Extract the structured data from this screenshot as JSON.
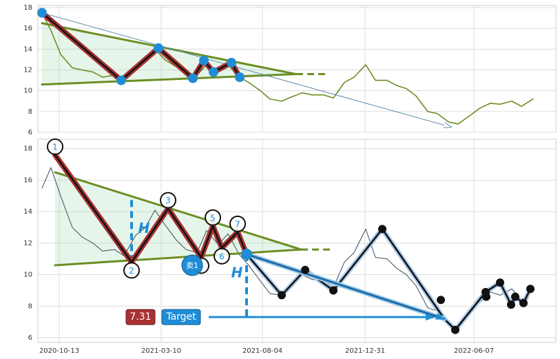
{
  "chart_data": [
    {
      "type": "line",
      "color": "#6b8e23",
      "ylim": [
        6,
        18.2
      ],
      "yticks": [
        6,
        8,
        10,
        12,
        14,
        16,
        18
      ],
      "xlim": [
        "2020-09-12",
        "2022-10-04"
      ],
      "xticks": [
        "2020-10-13",
        "2021-03-10",
        "2021-08-04",
        "2021-12-31",
        "2022-06-07"
      ],
      "show_xtick_labels": false,
      "grid": true,
      "x": [
        "2020-09-18",
        "2020-10-01",
        "2020-10-15",
        "2020-11-01",
        "2020-11-15",
        "2020-12-01",
        "2020-12-15",
        "2021-01-01",
        "2021-01-15",
        "2021-02-01",
        "2021-02-15",
        "2021-03-01",
        "2021-03-15",
        "2021-04-01",
        "2021-04-15",
        "2021-05-01",
        "2021-05-15",
        "2021-06-01",
        "2021-06-15",
        "2021-07-01",
        "2021-07-15",
        "2021-08-01",
        "2021-08-15",
        "2021-09-01",
        "2021-09-15",
        "2021-10-01",
        "2021-10-15",
        "2021-11-01",
        "2021-11-15",
        "2021-12-01",
        "2021-12-15",
        "2022-01-01",
        "2022-01-15",
        "2022-02-01",
        "2022-02-15",
        "2022-03-01",
        "2022-03-15",
        "2022-04-01",
        "2022-04-15",
        "2022-05-01",
        "2022-05-15",
        "2022-06-01",
        "2022-06-15",
        "2022-07-01",
        "2022-07-15",
        "2022-08-01",
        "2022-08-15",
        "2022-09-01"
      ],
      "values": [
        17.5,
        15.8,
        13.5,
        12.2,
        12,
        11.8,
        11.3,
        11.5,
        11.3,
        12.3,
        12.8,
        14,
        13,
        12.3,
        11.7,
        11.5,
        12.5,
        11.8,
        12.5,
        11.3,
        10.8,
        10,
        9.2,
        9,
        9.4,
        9.8,
        9.6,
        9.6,
        9.3,
        10.8,
        11.3,
        12.5,
        11,
        11,
        10.5,
        10.2,
        9.5,
        8,
        7.8,
        7,
        6.8,
        7.6,
        8.3,
        8.8,
        8.7,
        9,
        8.5,
        9.2
      ],
      "pattern": {
        "x": [
          "2020-09-18",
          "2021-01-11",
          "2021-03-06",
          "2021-04-25",
          "2021-05-11",
          "2021-05-25",
          "2021-06-20",
          "2021-07-02"
        ],
        "values": [
          17.5,
          11,
          14.1,
          11.2,
          12.9,
          11.8,
          12.7,
          11.3
        ]
      },
      "triangle": {
        "upper": {
          "x": [
            "2020-09-18",
            "2021-09-22"
          ],
          "values": [
            16.5,
            11.6
          ]
        },
        "lower": {
          "x": [
            "2020-09-18",
            "2021-09-22"
          ],
          "values": [
            10.6,
            11.6
          ]
        },
        "extension": {
          "x": [
            "2021-09-22",
            "2021-11-06"
          ],
          "values": [
            11.6,
            11.6
          ]
        }
      },
      "arrow": {
        "x": [
          "2020-09-18",
          "2022-05-05"
        ],
        "values": [
          17.5,
          6.5
        ]
      }
    },
    {
      "type": "line",
      "color": "#3a4a5c",
      "ylim": [
        5.7,
        18.6
      ],
      "yticks": [
        6,
        8,
        10,
        12,
        14,
        16,
        18
      ],
      "xlim": [
        "2020-09-12",
        "2022-10-04"
      ],
      "xticks": [
        "2020-10-13",
        "2021-03-10",
        "2021-08-04",
        "2021-12-31",
        "2022-06-07"
      ],
      "show_xtick_labels": true,
      "grid": true,
      "x": [
        "2020-09-18",
        "2020-10-01",
        "2020-10-15",
        "2020-11-01",
        "2020-11-15",
        "2020-12-01",
        "2020-12-15",
        "2021-01-01",
        "2021-01-15",
        "2021-02-01",
        "2021-02-15",
        "2021-03-01",
        "2021-03-15",
        "2021-04-01",
        "2021-04-15",
        "2021-05-01",
        "2021-05-15",
        "2021-06-01",
        "2021-06-15",
        "2021-07-01",
        "2021-07-15",
        "2021-08-01",
        "2021-08-15",
        "2021-09-01",
        "2021-09-15",
        "2021-10-01",
        "2021-10-15",
        "2021-11-01",
        "2021-11-15",
        "2021-12-01",
        "2021-12-15",
        "2022-01-01",
        "2022-01-15",
        "2022-02-01",
        "2022-02-15",
        "2022-03-01",
        "2022-03-15",
        "2022-04-01",
        "2022-04-15",
        "2022-05-01",
        "2022-05-15",
        "2022-06-01",
        "2022-06-15",
        "2022-07-01",
        "2022-07-15",
        "2022-08-01",
        "2022-08-15",
        "2022-09-01"
      ],
      "values": [
        15.5,
        16.8,
        15,
        13,
        12.4,
        12,
        11.5,
        11.6,
        11.2,
        12.5,
        13,
        14.1,
        13.2,
        12.2,
        11.6,
        11.4,
        12.8,
        11.9,
        12.6,
        11.3,
        10.6,
        9.6,
        8.8,
        8.7,
        9.4,
        10,
        9.7,
        9.6,
        9.2,
        10.8,
        11.4,
        12.9,
        11.1,
        11,
        10.4,
        10,
        9.3,
        7.9,
        7.7,
        7,
        6.6,
        7.5,
        8.2,
        8.9,
        8.7,
        9.1,
        8.4,
        9.1
      ],
      "pattern": {
        "x": [
          "2020-10-07",
          "2021-01-26",
          "2021-03-20",
          "2021-05-07",
          "2021-05-24",
          "2021-06-06",
          "2021-06-29",
          "2021-07-12"
        ],
        "values": [
          17.6,
          10.8,
          14.2,
          11.1,
          13.1,
          11.7,
          12.7,
          11.3
        ],
        "labels": [
          "1",
          "2",
          "3",
          "4",
          "5",
          "6",
          "7",
          null
        ]
      },
      "triangle": {
        "upper": {
          "x": [
            "2020-10-07",
            "2021-09-29"
          ],
          "values": [
            16.5,
            11.6
          ]
        },
        "lower": {
          "x": [
            "2020-10-07",
            "2021-09-29"
          ],
          "values": [
            10.6,
            11.6
          ]
        },
        "extension": {
          "x": [
            "2021-09-29",
            "2021-11-13"
          ],
          "values": [
            11.6,
            11.6
          ]
        }
      },
      "measure": [
        {
          "label": "H",
          "x": [
            "2021-01-26",
            "2021-01-26"
          ],
          "values": [
            10.8,
            15
          ]
        },
        {
          "label": "H",
          "x": [
            "2021-07-12",
            "2021-07-12"
          ],
          "values": [
            11.3,
            7.31
          ]
        }
      ],
      "projection": {
        "x": [
          "2021-07-12",
          "2022-04-25"
        ],
        "values": [
          11.3,
          7.2
        ]
      },
      "target": {
        "value": 7.31,
        "label": "Target",
        "x": [
          "2021-05-18",
          "2022-04-10"
        ]
      },
      "signal": {
        "label": "卖1",
        "x": "2021-04-24",
        "value": 10.6
      },
      "path": {
        "x": [
          "2021-07-12",
          "2021-09-01",
          "2021-10-05",
          "2021-11-15",
          "2022-01-25",
          "2022-04-25",
          "2022-05-11",
          "2022-06-24",
          "2022-07-15",
          "2022-07-31",
          "2022-08-06",
          "2022-08-18",
          "2022-08-28"
        ],
        "values": [
          11.3,
          8.7,
          10.3,
          9,
          12.9,
          7.2,
          6.5,
          8.9,
          9.5,
          8.1,
          8.6,
          8.2,
          9.1
        ]
      },
      "dots": {
        "x": [
          "2021-09-01",
          "2021-10-05",
          "2021-11-15",
          "2022-01-25",
          "2022-04-20",
          "2022-05-11",
          "2022-06-24",
          "2022-06-25",
          "2022-07-15",
          "2022-07-31",
          "2022-08-06",
          "2022-08-18",
          "2022-08-28"
        ],
        "values": [
          8.7,
          10.3,
          9,
          12.9,
          8.4,
          6.5,
          8.9,
          8.6,
          9.5,
          8.1,
          8.6,
          8.2,
          9.1
        ]
      }
    }
  ]
}
